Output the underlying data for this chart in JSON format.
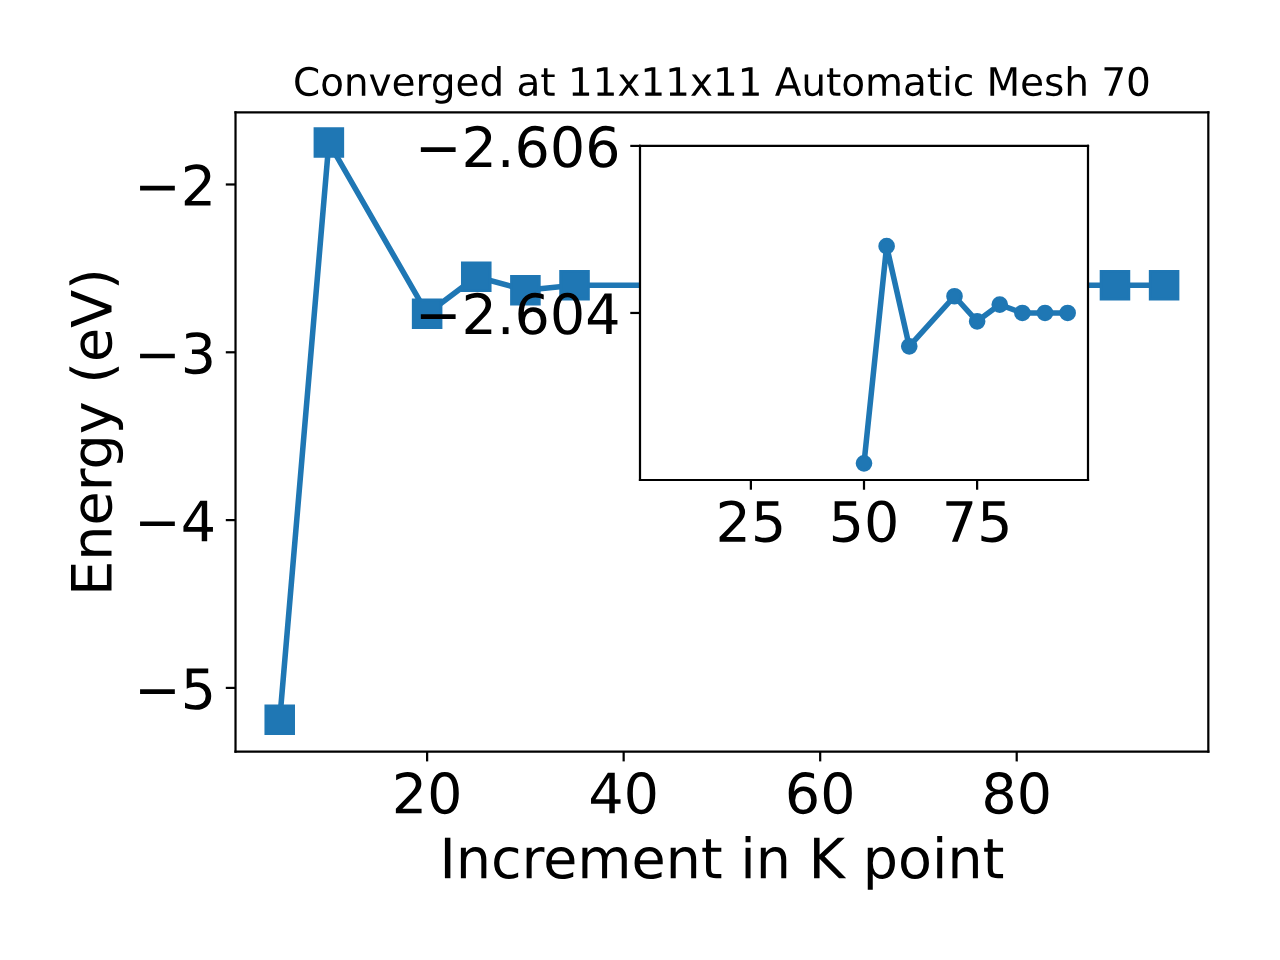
{
  "chart_data": [
    {
      "type": "line",
      "title": "Converged at 11x11x11 Automatic Mesh 70",
      "xlabel": "Increment in K point",
      "ylabel": "Energy (eV)",
      "marker": "square",
      "line_style": "solid",
      "grid": false,
      "legend": false,
      "x": [
        5,
        10,
        20,
        25,
        30,
        35,
        90,
        95
      ],
      "series": [
        {
          "color": "#1f77b4",
          "values": [
            -5.19,
            -1.75,
            -2.77,
            -2.55,
            -2.63,
            -2.6,
            -2.6,
            -2.6
          ]
        }
      ],
      "xlim": [
        0.5,
        99.5
      ],
      "xticks": [
        20,
        40,
        60,
        80
      ],
      "ylim": [
        -5.38,
        -1.57
      ],
      "yticks": [
        {
          "value": -2,
          "label": "−2"
        },
        {
          "value": -3,
          "label": "−3"
        },
        {
          "value": -4,
          "label": "−4"
        },
        {
          "value": -5,
          "label": "−5"
        }
      ]
    },
    {
      "type": "line",
      "marker": "circle",
      "line_style": "solid",
      "grid": false,
      "legend": false,
      "x": [
        50,
        55,
        60,
        70,
        75,
        80,
        85,
        90,
        95
      ],
      "series": [
        {
          "color": "#1f77b4",
          "values": [
            -2.6022,
            -2.6048,
            -2.6036,
            -2.6042,
            -2.6039,
            -2.6041,
            -2.604,
            -2.604,
            -2.604
          ]
        }
      ],
      "xlim": [
        0.5,
        99.5
      ],
      "xticks": [
        25,
        50,
        75
      ],
      "ylim": [
        -2.602,
        -2.606
      ],
      "yticks": [
        {
          "value": -2.606,
          "label": "−2.606"
        },
        {
          "value": -2.604,
          "label": "−2.604"
        }
      ]
    }
  ]
}
